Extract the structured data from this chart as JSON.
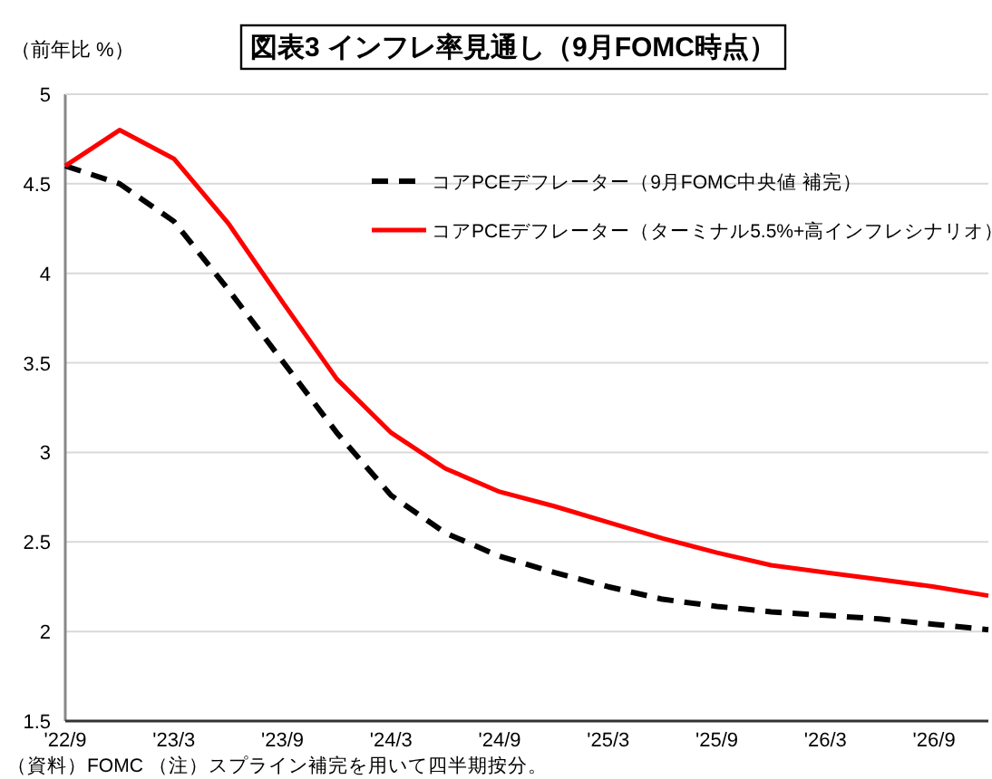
{
  "chart_data": {
    "type": "line",
    "title": "図表3 インフレ率見通し（9月FOMC時点）",
    "ylabel": "（前年比 %）",
    "annotations": [
      "（資料）FOMC （注）スプライン補完を用いて四半期按分。"
    ],
    "categories": [
      "'22/9",
      null,
      "'23/3",
      null,
      "'23/9",
      null,
      "'24/3",
      null,
      "'24/9",
      null,
      "'25/3",
      null,
      "'25/9",
      null,
      "'26/3",
      null,
      "'26/9",
      null
    ],
    "series": [
      {
        "name": "コアPCEデフレーター（9月FOMC中央値 補完）",
        "color": "#000000",
        "line_style": "dashed",
        "values": [
          4.6,
          4.5,
          4.29,
          3.91,
          3.51,
          3.11,
          2.76,
          2.55,
          2.42,
          2.33,
          2.25,
          2.18,
          2.14,
          2.11,
          2.09,
          2.07,
          2.04,
          2.01
        ]
      },
      {
        "name": "コアPCEデフレーター（ターミナル5.5%+高インフレシナリオ）",
        "color": "#ff0000",
        "line_style": "solid",
        "values": [
          4.6,
          4.8,
          4.64,
          4.28,
          3.84,
          3.41,
          3.11,
          2.91,
          2.78,
          2.7,
          2.61,
          2.52,
          2.44,
          2.37,
          2.33,
          2.29,
          2.25,
          2.2
        ]
      }
    ],
    "ylim": [
      1.5,
      5
    ],
    "yticks": [
      1.5,
      2,
      2.5,
      3,
      3.5,
      4,
      4.5,
      5
    ],
    "grid": "y",
    "legend": "top right"
  }
}
